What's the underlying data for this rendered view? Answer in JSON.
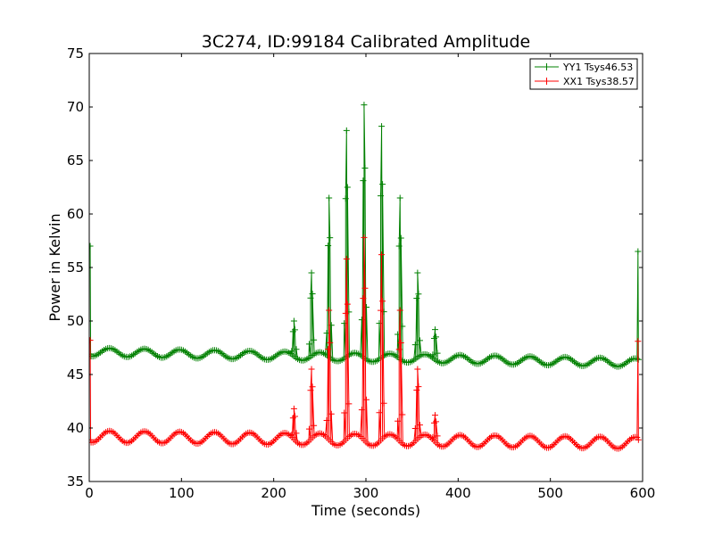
{
  "chart_data": {
    "type": "line",
    "title": "3C274, ID:99184 Calibrated Amplitude",
    "xlabel": "Time (seconds)",
    "ylabel": "Power in Kelvin",
    "xlim": [
      0,
      600
    ],
    "ylim": [
      35,
      75
    ],
    "xticks": [
      0,
      100,
      200,
      300,
      400,
      500,
      600
    ],
    "yticks": [
      35,
      40,
      45,
      50,
      55,
      60,
      65,
      70,
      75
    ],
    "grid": false,
    "legend_position": "top-right",
    "series": [
      {
        "name": "YY1 Tsys46.53",
        "color": "#008000",
        "baseline": {
          "x_start": 2,
          "x_end": 594,
          "step": 2,
          "mean_start": 47.1,
          "mean_end": 46.1,
          "amplitude": 0.4,
          "period": 38
        },
        "points": [
          [
            1,
            57.0
          ],
          [
            1.5,
            46.9
          ],
          [
            222,
            50.0
          ],
          [
            241,
            54.5
          ],
          [
            260,
            61.5
          ],
          [
            279,
            67.8
          ],
          [
            298,
            70.2
          ],
          [
            317,
            68.2
          ],
          [
            337,
            61.5
          ],
          [
            356,
            54.5
          ],
          [
            375,
            49.2
          ],
          [
            595,
            56.5
          ],
          [
            595.5,
            46.4
          ]
        ]
      },
      {
        "name": "XX1 Tsys38.57",
        "color": "#ff0000",
        "baseline": {
          "x_start": 2,
          "x_end": 594,
          "step": 2,
          "mean_start": 39.2,
          "mean_end": 38.6,
          "amplitude": 0.55,
          "period": 38
        },
        "points": [
          [
            1,
            48.2
          ],
          [
            1.5,
            38.9
          ],
          [
            222,
            41.8
          ],
          [
            241,
            45.5
          ],
          [
            260,
            51.0
          ],
          [
            279,
            55.8
          ],
          [
            298,
            57.8
          ],
          [
            317,
            56.2
          ],
          [
            337,
            51.0
          ],
          [
            356,
            45.5
          ],
          [
            375,
            41.2
          ],
          [
            595,
            48.1
          ],
          [
            595.5,
            38.9
          ]
        ]
      }
    ]
  }
}
